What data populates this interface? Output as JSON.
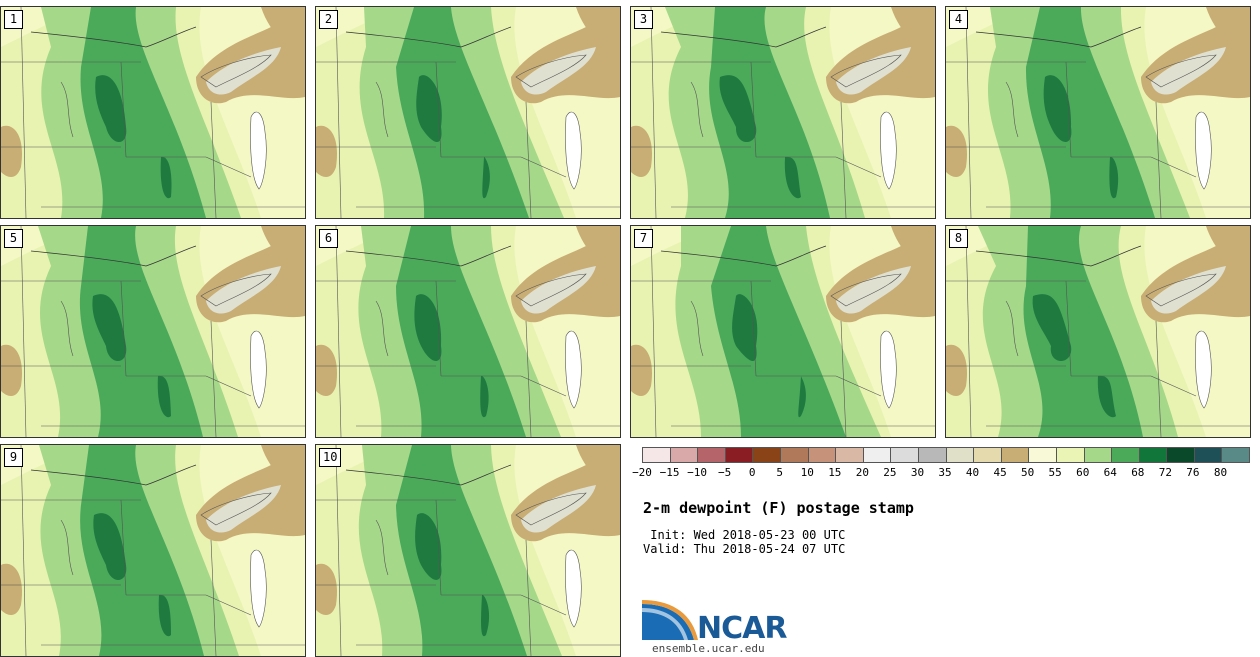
{
  "panels": [
    {
      "label": "1"
    },
    {
      "label": "2"
    },
    {
      "label": "3"
    },
    {
      "label": "4"
    },
    {
      "label": "5"
    },
    {
      "label": "6"
    },
    {
      "label": "7"
    },
    {
      "label": "8"
    },
    {
      "label": "9"
    },
    {
      "label": "10"
    }
  ],
  "legend": {
    "colors": [
      "#f5e6e8",
      "#d9a9aa",
      "#b5656a",
      "#8a1c24",
      "#8a4317",
      "#b07a5a",
      "#c6937a",
      "#dab8a6",
      "#f0efef",
      "#dcdcdc",
      "#b8b8b8",
      "#e0e0c8",
      "#e5d9ae",
      "#c8ad74",
      "#f8f9d6",
      "#eaf4b4",
      "#a6d88a",
      "#4aaa5a",
      "#11763a",
      "#0a4a2a",
      "#1e5058",
      "#5a8a88"
    ],
    "ticks": [
      "−20",
      "−15",
      "−10",
      "−5",
      "0",
      "5",
      "10",
      "15",
      "20",
      "25",
      "30",
      "35",
      "40",
      "45",
      "50",
      "55",
      "60",
      "64",
      "68",
      "72",
      "76",
      "80"
    ]
  },
  "title": "2-m dewpoint (F) postage stamp",
  "init": " Init: Wed 2018-05-23 00 UTC",
  "valid": "Valid: Thu 2018-05-24 07 UTC",
  "logo": {
    "name": "NCAR",
    "site": "ensemble.ucar.edu"
  }
}
